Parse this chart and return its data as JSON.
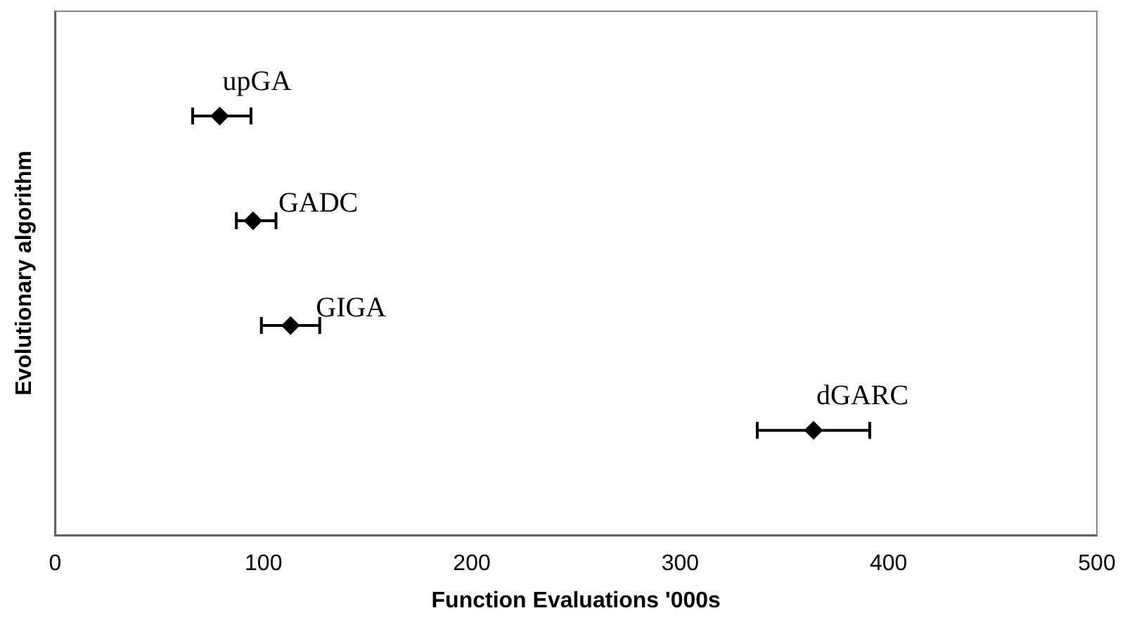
{
  "chart_data": {
    "type": "scatter",
    "orientation": "horizontal",
    "xlabel": "Function Evaluations '000s",
    "ylabel": "Evolutionary algorithm",
    "categories": [
      null,
      null,
      null,
      null
    ],
    "series": [
      {
        "name": "upGA",
        "color": "#000000",
        "values": [
          79,
          null,
          null,
          null
        ],
        "errors": [
          [
            66,
            94
          ],
          null,
          null,
          null
        ]
      },
      {
        "name": "GADC",
        "color": "#000000",
        "values": [
          null,
          95,
          null,
          null
        ],
        "errors": [
          null,
          [
            87,
            106
          ],
          null,
          null
        ]
      },
      {
        "name": "GIGA",
        "color": "#000000",
        "values": [
          null,
          null,
          113,
          null
        ],
        "errors": [
          null,
          null,
          [
            99,
            127
          ],
          null
        ]
      },
      {
        "name": "dGARC",
        "color": "#000000",
        "values": [
          null,
          null,
          null,
          364
        ],
        "errors": [
          null,
          null,
          null,
          [
            337,
            391
          ]
        ]
      }
    ],
    "xlim": [
      0,
      500
    ],
    "xticks": [
      0,
      100,
      200,
      300,
      400,
      500
    ],
    "marker": "diamond",
    "grid": false,
    "legend": false
  }
}
